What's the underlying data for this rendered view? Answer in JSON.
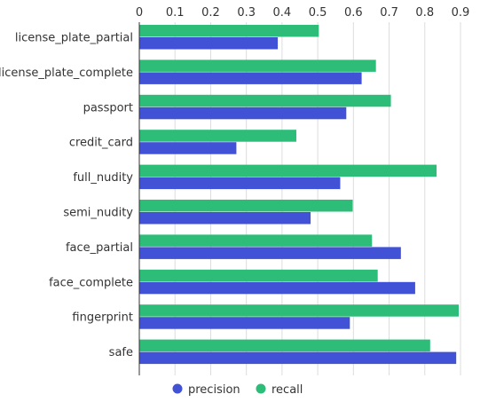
{
  "chart_data": {
    "type": "bar",
    "orientation": "horizontal",
    "title": "",
    "xlabel": "",
    "ylabel": "",
    "categories": [
      "license_plate_partial",
      "license_plate_complete",
      "passport",
      "credit_card",
      "full_nudity",
      "semi_nudity",
      "face_partial",
      "face_complete",
      "fingerprint",
      "safe"
    ],
    "series": [
      {
        "name": "recall",
        "color": "#2dbd79",
        "values": [
          0.503,
          0.663,
          0.705,
          0.44,
          0.833,
          0.598,
          0.652,
          0.668,
          0.895,
          0.815
        ]
      },
      {
        "name": "precision",
        "color": "#4152d6",
        "values": [
          0.388,
          0.623,
          0.58,
          0.272,
          0.563,
          0.48,
          0.733,
          0.773,
          0.59,
          0.888
        ]
      }
    ],
    "xlim": [
      0,
      0.9
    ],
    "xticks": [
      "0",
      "0.1",
      "0.2",
      "0.3",
      "0.4",
      "0.5",
      "0.6",
      "0.7",
      "0.8",
      "0.9"
    ],
    "x_axis_position": "top",
    "grid": true,
    "legend": {
      "position": "bottom",
      "items": [
        "precision",
        "recall"
      ]
    }
  }
}
